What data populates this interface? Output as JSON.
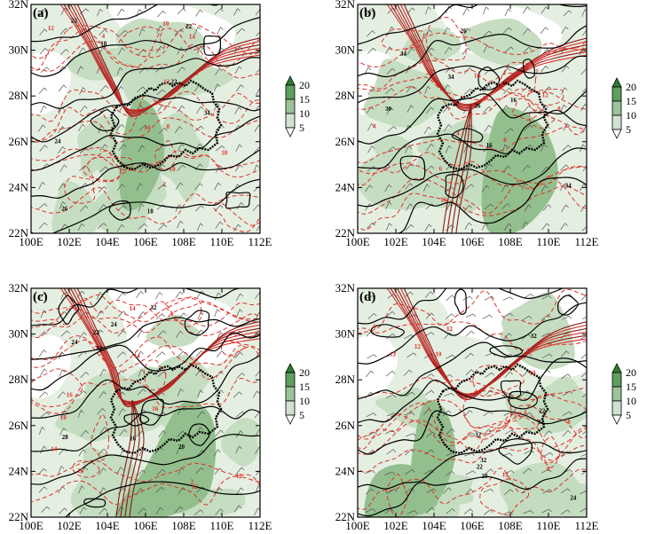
{
  "figure": {
    "panels": [
      {
        "label": "(a)",
        "variant": 0
      },
      {
        "label": "(b)",
        "variant": 1
      },
      {
        "label": "(c)",
        "variant": 2
      },
      {
        "label": "(d)",
        "variant": 3
      }
    ],
    "x_tick_labels": [
      "100E",
      "102E",
      "104E",
      "106E",
      "108E",
      "110E",
      "112E"
    ],
    "y_tick_labels": [
      "22N",
      "24N",
      "26N",
      "28N",
      "30N",
      "32N"
    ],
    "colorbar_labels": [
      "20",
      "15",
      "10",
      "5"
    ],
    "colorbar_colors": [
      "#2e7d32",
      "#5e9e5e",
      "#9bc39b",
      "#cfe2cf",
      "#ffffff"
    ],
    "black_contour_labels": [
      "16",
      "18",
      "20",
      "22",
      "24",
      "26",
      "28",
      "30",
      "32",
      "34"
    ],
    "red_contour_labels": [
      "2",
      "4",
      "6",
      "8",
      "10",
      "12",
      "14",
      "16"
    ],
    "colors": {
      "shade_light": "#e4efe1",
      "shade_mid": "#c3dbbf",
      "shade_dark": "#93bf8e",
      "black_contour": "#000000",
      "red_contour": "#e0302a",
      "dark_red_contour": "#8b1a1a",
      "boundary": "#000000"
    }
  }
}
